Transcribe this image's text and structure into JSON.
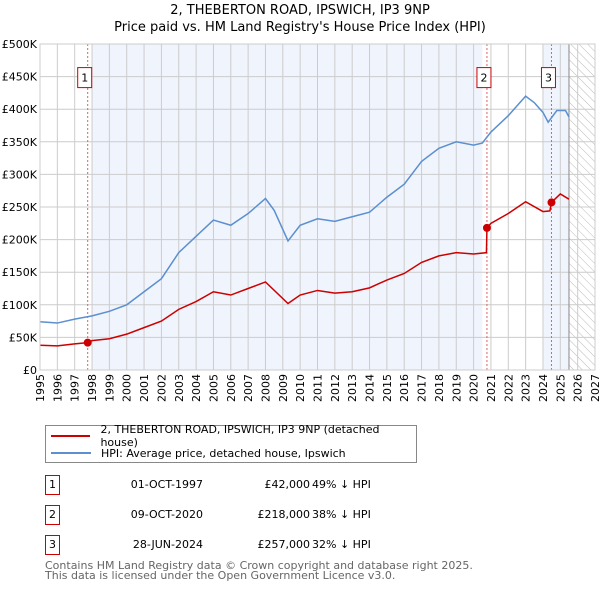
{
  "chart_data": {
    "type": "line",
    "title": "2, THEBERTON ROAD, IPSWICH, IP3 9NP",
    "subtitle": "Price paid vs. HM Land Registry's House Price Index (HPI)",
    "xlim": [
      1995,
      2027
    ],
    "ylim": [
      0,
      500000
    ],
    "x_ticks": [
      "1995",
      "1996",
      "1997",
      "1998",
      "1999",
      "2000",
      "2001",
      "2002",
      "2003",
      "2004",
      "2005",
      "2006",
      "2007",
      "2008",
      "2009",
      "2010",
      "2011",
      "2012",
      "2013",
      "2014",
      "2015",
      "2016",
      "2017",
      "2018",
      "2019",
      "2020",
      "2021",
      "2022",
      "2023",
      "2024",
      "2025",
      "2026",
      "2027"
    ],
    "y_ticks": [
      {
        "v": 0,
        "l": "£0"
      },
      {
        "v": 50000,
        "l": "£50K"
      },
      {
        "v": 100000,
        "l": "£100K"
      },
      {
        "v": 150000,
        "l": "£150K"
      },
      {
        "v": 200000,
        "l": "£200K"
      },
      {
        "v": 250000,
        "l": "£250K"
      },
      {
        "v": 300000,
        "l": "£300K"
      },
      {
        "v": 350000,
        "l": "£350K"
      },
      {
        "v": 400000,
        "l": "£400K"
      },
      {
        "v": 450000,
        "l": "£450K"
      },
      {
        "v": 500000,
        "l": "£500K"
      }
    ],
    "grid": true,
    "series": [
      {
        "name": "2, THEBERTON ROAD, IPSWICH, IP3 9NP (detached house)",
        "color": "#cc0000",
        "points": [
          [
            1995,
            38000
          ],
          [
            1996,
            37000
          ],
          [
            1997,
            40000
          ],
          [
            1997.75,
            42000
          ],
          [
            1998,
            45000
          ],
          [
            1999,
            48000
          ],
          [
            2000,
            55000
          ],
          [
            2001,
            65000
          ],
          [
            2002,
            75000
          ],
          [
            2003,
            93000
          ],
          [
            2004,
            105000
          ],
          [
            2005,
            120000
          ],
          [
            2006,
            115000
          ],
          [
            2007,
            125000
          ],
          [
            2008,
            135000
          ],
          [
            2009.3,
            102000
          ],
          [
            2010,
            115000
          ],
          [
            2011,
            122000
          ],
          [
            2012,
            118000
          ],
          [
            2013,
            120000
          ],
          [
            2014,
            126000
          ],
          [
            2015,
            138000
          ],
          [
            2016,
            148000
          ],
          [
            2017,
            165000
          ],
          [
            2018,
            175000
          ],
          [
            2019,
            180000
          ],
          [
            2020,
            178000
          ],
          [
            2020.74,
            180000
          ],
          [
            2020.77,
            218000
          ],
          [
            2021,
            225000
          ],
          [
            2022,
            240000
          ],
          [
            2023,
            258000
          ],
          [
            2024,
            243000
          ],
          [
            2024.4,
            244000
          ],
          [
            2024.49,
            257000
          ],
          [
            2025,
            270000
          ],
          [
            2025.5,
            262000
          ]
        ]
      },
      {
        "name": "HPI: Average price, detached house, Ipswich",
        "color": "#5b8fd0",
        "points": [
          [
            1995,
            74000
          ],
          [
            1996,
            72000
          ],
          [
            1997,
            78000
          ],
          [
            1998,
            83000
          ],
          [
            1999,
            90000
          ],
          [
            2000,
            100000
          ],
          [
            2001,
            120000
          ],
          [
            2002,
            140000
          ],
          [
            2003,
            180000
          ],
          [
            2004,
            205000
          ],
          [
            2005,
            230000
          ],
          [
            2006,
            222000
          ],
          [
            2007,
            240000
          ],
          [
            2008,
            263000
          ],
          [
            2008.5,
            245000
          ],
          [
            2009.3,
            198000
          ],
          [
            2010,
            222000
          ],
          [
            2011,
            232000
          ],
          [
            2012,
            228000
          ],
          [
            2013,
            235000
          ],
          [
            2014,
            242000
          ],
          [
            2015,
            265000
          ],
          [
            2016,
            285000
          ],
          [
            2017,
            320000
          ],
          [
            2018,
            340000
          ],
          [
            2019,
            350000
          ],
          [
            2020,
            345000
          ],
          [
            2020.5,
            348000
          ],
          [
            2021,
            365000
          ],
          [
            2022,
            390000
          ],
          [
            2023,
            420000
          ],
          [
            2023.5,
            410000
          ],
          [
            2024,
            395000
          ],
          [
            2024.3,
            380000
          ],
          [
            2024.8,
            398000
          ],
          [
            2025.3,
            398000
          ],
          [
            2025.5,
            388000
          ]
        ]
      }
    ],
    "sales": [
      {
        "n": "1",
        "x": 1997.75,
        "price": 42000,
        "date": "01-OCT-1997",
        "price_label": "£42,000",
        "hpi": "49% ↓ HPI"
      },
      {
        "n": "2",
        "x": 2020.77,
        "price": 218000,
        "date": "09-OCT-2020",
        "price_label": "£218,000",
        "hpi": "38% ↓ HPI"
      },
      {
        "n": "3",
        "x": 2024.49,
        "price": 257000,
        "date": "28-JUN-2024",
        "price_label": "£257,000",
        "hpi": "32% ↓ HPI"
      }
    ],
    "forecast_start": 2025.5,
    "legend_position": "below"
  },
  "footer": [
    "Contains HM Land Registry data © Crown copyright and database right 2025.",
    "This data is licensed under the Open Government Licence v3.0."
  ]
}
